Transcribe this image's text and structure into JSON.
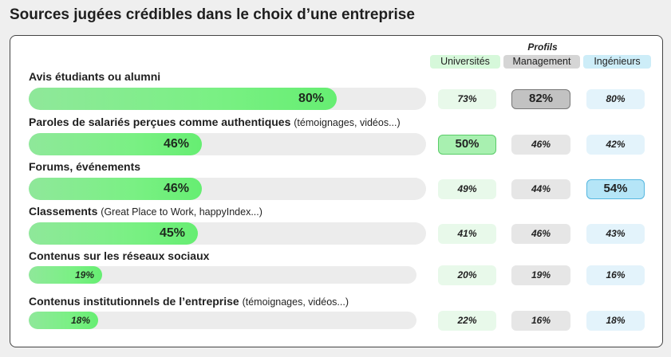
{
  "title": "Sources jugées crédibles dans le choix d’une entreprise",
  "profils_label": "Profils",
  "columns": [
    {
      "label": "Universités",
      "color": "#d6f8da"
    },
    {
      "label": "Management",
      "color": "#d5d5d5"
    },
    {
      "label": "Ingénieurs",
      "color": "#cdedf8"
    }
  ],
  "colors": {
    "bar": "#7af084",
    "track": "#ececec"
  },
  "chart_data": {
    "type": "bar",
    "orientation": "horizontal",
    "title": "Sources jugées crédibles dans le choix d’une entreprise",
    "categories": [
      "Avis étudiants ou alumni",
      "Paroles de salariés perçues comme authentiques",
      "Forums, événements",
      "Classements",
      "Contenus sur les réseaux sociaux",
      "Contenus institutionnels de l’entreprise"
    ],
    "category_notes": [
      "",
      "(témoignages, vidéos...)",
      "",
      "(Great Place to Work, happyIndex...)",
      "",
      "(témoignages, vidéos...)"
    ],
    "values": [
      80,
      46,
      46,
      45,
      19,
      18
    ],
    "value_labels": [
      "80%",
      "46%",
      "46%",
      "45%",
      "19%",
      "18%"
    ],
    "unit": "%",
    "profiles": [
      {
        "name": "Universités",
        "values": [
          73,
          50,
          49,
          41,
          20,
          22
        ],
        "labels": [
          "73%",
          "50%",
          "49%",
          "41%",
          "20%",
          "22%"
        ],
        "highlight_index": 1
      },
      {
        "name": "Management",
        "values": [
          82,
          46,
          44,
          46,
          19,
          16
        ],
        "labels": [
          "82%",
          "46%",
          "44%",
          "46%",
          "19%",
          "16%"
        ],
        "highlight_index": 0
      },
      {
        "name": "Ingénieurs",
        "values": [
          80,
          42,
          54,
          43,
          16,
          18
        ],
        "labels": [
          "80%",
          "42%",
          "54%",
          "43%",
          "16%",
          "18%"
        ],
        "highlight_index": 2
      }
    ],
    "xlim": [
      0,
      100
    ]
  }
}
